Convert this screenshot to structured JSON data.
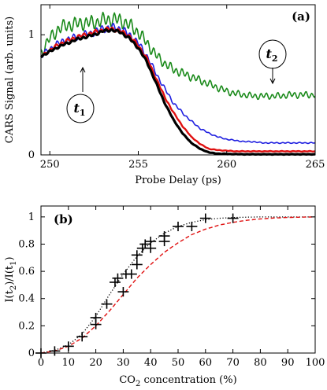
{
  "chart_data": [
    {
      "panel_label": "(a)",
      "type": "line",
      "xlabel": "Probe Delay (ps)",
      "ylabel": "CARS Signal (arb. units)",
      "xlim": [
        249.5,
        265
      ],
      "ylim": [
        0,
        1.25
      ],
      "xticks": [
        250,
        255,
        260,
        265
      ],
      "yticks": [
        0,
        1
      ],
      "grid": false,
      "annotations": [
        {
          "text_main": "t",
          "text_sub": "1",
          "points_to": [
            252.3,
            0.79
          ]
        },
        {
          "text_main": "t",
          "text_sub": "2",
          "points_to": [
            263.1,
            0.62
          ]
        }
      ],
      "series": [
        {
          "color": "#1a8a1a",
          "x": [
            249.5,
            250,
            250.5,
            251,
            251.5,
            252,
            252.5,
            253,
            253.5,
            254,
            254.5,
            255,
            255.5,
            256,
            256.5,
            257,
            257.5,
            258,
            258.5,
            259,
            259.5,
            260,
            260.5,
            261,
            261.5,
            262,
            262.5,
            263,
            263.5,
            264,
            264.5,
            265
          ],
          "values": [
            0.85,
            0.97,
            1.05,
            1.08,
            1.09,
            1.1,
            1.1,
            1.12,
            1.13,
            1.12,
            1.08,
            1.02,
            0.93,
            0.83,
            0.76,
            0.71,
            0.68,
            0.65,
            0.62,
            0.59,
            0.56,
            0.53,
            0.51,
            0.5,
            0.49,
            0.49,
            0.49,
            0.49,
            0.5,
            0.5,
            0.5,
            0.5
          ],
          "noise": 0.06
        },
        {
          "color": "#1f1fe0",
          "x": [
            249.5,
            250,
            250.5,
            251,
            251.5,
            252,
            252.5,
            253,
            253.5,
            254,
            254.5,
            255,
            255.5,
            256,
            256.5,
            257,
            257.5,
            258,
            258.5,
            259,
            259.5,
            260,
            260.5,
            261,
            261.5,
            262,
            262.5,
            263,
            263.5,
            264,
            264.5,
            265
          ],
          "values": [
            0.82,
            0.88,
            0.93,
            0.96,
            0.98,
            1.0,
            1.02,
            1.05,
            1.06,
            1.05,
            1.0,
            0.93,
            0.82,
            0.68,
            0.55,
            0.43,
            0.35,
            0.28,
            0.22,
            0.18,
            0.15,
            0.13,
            0.12,
            0.11,
            0.11,
            0.1,
            0.1,
            0.1,
            0.1,
            0.1,
            0.1,
            0.1
          ],
          "noise": 0.035
        },
        {
          "color": "#e01010",
          "x": [
            249.5,
            250,
            250.5,
            251,
            251.5,
            252,
            252.5,
            253,
            253.5,
            254,
            254.5,
            255,
            255.5,
            256,
            256.5,
            257,
            257.5,
            258,
            258.5,
            259,
            259.5,
            260,
            260.5,
            261,
            261.5,
            262,
            262.5,
            263,
            263.5,
            264,
            264.5,
            265
          ],
          "values": [
            0.82,
            0.87,
            0.92,
            0.95,
            0.98,
            1.0,
            1.02,
            1.04,
            1.05,
            1.03,
            0.99,
            0.91,
            0.8,
            0.64,
            0.48,
            0.35,
            0.24,
            0.15,
            0.09,
            0.05,
            0.04,
            0.035,
            0.03,
            0.03,
            0.03,
            0.03,
            0.03,
            0.03,
            0.03,
            0.03,
            0.03,
            0.03
          ],
          "noise": 0.018
        },
        {
          "color": "#000000",
          "x": [
            249.5,
            250,
            250.5,
            251,
            251.5,
            252,
            252.5,
            253,
            253.5,
            254,
            254.5,
            255,
            255.5,
            256,
            256.5,
            257,
            257.5,
            258,
            258.5,
            259,
            259.5,
            260,
            260.5,
            261,
            261.5,
            262,
            262.5,
            263,
            263.5,
            264,
            264.5,
            265
          ],
          "values": [
            0.82,
            0.86,
            0.9,
            0.93,
            0.96,
            0.98,
            1.0,
            1.03,
            1.04,
            1.02,
            0.97,
            0.89,
            0.77,
            0.6,
            0.43,
            0.29,
            0.18,
            0.1,
            0.05,
            0.02,
            0.01,
            0.008,
            0.006,
            0.005,
            0.005,
            0.005,
            0.005,
            0.005,
            0.005,
            0.005,
            0.005,
            0.005
          ],
          "noise": 0.012
        }
      ]
    },
    {
      "panel_label": "(b)",
      "type": "scatter",
      "xlabel_main": "CO",
      "xlabel_sub": "2",
      "xlabel_rest": " concentration  (%)",
      "ylabel_a": "I(t",
      "ylabel_a_sub": "2",
      "ylabel_b": ")/I(t",
      "ylabel_b_sub": "1",
      "ylabel_c": ")",
      "xlim": [
        0,
        100
      ],
      "ylim": [
        0,
        1.08
      ],
      "xticks": [
        0,
        10,
        20,
        30,
        40,
        50,
        60,
        70,
        80,
        90,
        100
      ],
      "yticks": [
        0,
        0.2,
        0.4,
        0.6,
        0.8,
        1
      ],
      "grid": false,
      "points": [
        {
          "x": 0,
          "y": 0.0
        },
        {
          "x": 5,
          "y": 0.015
        },
        {
          "x": 10,
          "y": 0.05
        },
        {
          "x": 15,
          "y": 0.12
        },
        {
          "x": 20,
          "y": 0.21
        },
        {
          "x": 20,
          "y": 0.26
        },
        {
          "x": 24,
          "y": 0.36
        },
        {
          "x": 27,
          "y": 0.52
        },
        {
          "x": 28,
          "y": 0.55
        },
        {
          "x": 30,
          "y": 0.45
        },
        {
          "x": 31,
          "y": 0.58
        },
        {
          "x": 33,
          "y": 0.58
        },
        {
          "x": 35,
          "y": 0.65
        },
        {
          "x": 35,
          "y": 0.72
        },
        {
          "x": 37,
          "y": 0.77
        },
        {
          "x": 38,
          "y": 0.8
        },
        {
          "x": 40,
          "y": 0.82
        },
        {
          "x": 40,
          "y": 0.77
        },
        {
          "x": 45,
          "y": 0.86
        },
        {
          "x": 45,
          "y": 0.82
        },
        {
          "x": 50,
          "y": 0.93
        },
        {
          "x": 55,
          "y": 0.93
        },
        {
          "x": 60,
          "y": 0.99
        },
        {
          "x": 70,
          "y": 0.99
        }
      ],
      "xerr": 2,
      "yerr": 0.035,
      "fits": [
        {
          "color": "#000000",
          "dash": "dotted",
          "x": [
            0,
            5,
            10,
            15,
            20,
            25,
            30,
            35,
            40,
            45,
            50,
            55,
            60,
            65,
            70,
            75,
            80,
            90,
            100
          ],
          "values": [
            0,
            0.02,
            0.06,
            0.14,
            0.27,
            0.43,
            0.58,
            0.71,
            0.81,
            0.88,
            0.93,
            0.96,
            0.98,
            0.99,
            0.995,
            0.998,
            1.0,
            1.0,
            1.0
          ]
        },
        {
          "color": "#e01010",
          "dash": "dashed",
          "x": [
            0,
            5,
            10,
            15,
            20,
            25,
            30,
            35,
            40,
            45,
            50,
            55,
            60,
            65,
            70,
            75,
            80,
            85,
            90,
            100
          ],
          "values": [
            0,
            0.015,
            0.05,
            0.11,
            0.2,
            0.31,
            0.43,
            0.55,
            0.65,
            0.74,
            0.81,
            0.87,
            0.91,
            0.94,
            0.96,
            0.975,
            0.985,
            0.992,
            0.996,
            1.0
          ]
        }
      ]
    }
  ]
}
